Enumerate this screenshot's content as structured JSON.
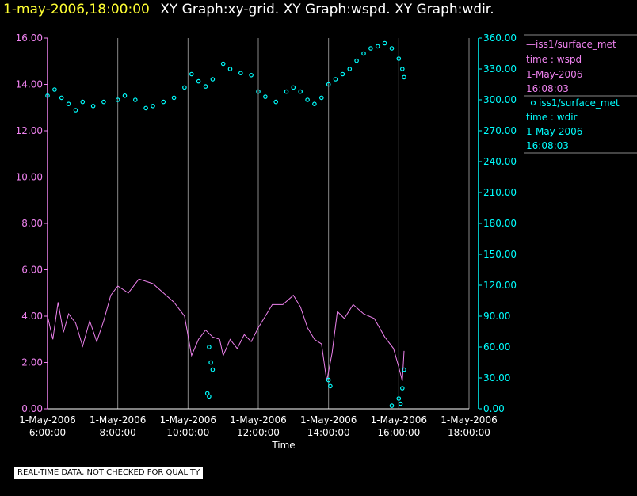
{
  "header": {
    "date": "1-may-2006,18:00:00",
    "title": "XY Graph:xy-grid.  XY Graph:wspd.  XY Graph:wdir."
  },
  "colors": {
    "background": "#000000",
    "grid": "#888888",
    "wspd": "#ee82ee",
    "wdir": "#00ffff",
    "header_date": "#ffff33"
  },
  "chart_data": {
    "type": "line",
    "xlabel": "Time",
    "x_ticks": [
      {
        "date": "1-May-2006",
        "time": "6:00:00",
        "hour": 6
      },
      {
        "date": "1-May-2006",
        "time": "8:00:00",
        "hour": 8
      },
      {
        "date": "1-May-2006",
        "time": "10:00:00",
        "hour": 10
      },
      {
        "date": "1-May-2006",
        "time": "12:00:00",
        "hour": 12
      },
      {
        "date": "1-May-2006",
        "time": "14:00:00",
        "hour": 14
      },
      {
        "date": "1-May-2006",
        "time": "16:00:00",
        "hour": 16
      },
      {
        "date": "1-May-2006",
        "time": "18:00:00",
        "hour": 18
      }
    ],
    "xlim_hours": [
      6,
      18
    ],
    "y_left": {
      "ylim": [
        0,
        16
      ],
      "ticks": [
        "0.00",
        "2.00",
        "4.00",
        "6.00",
        "8.00",
        "10.00",
        "12.00",
        "14.00",
        "16.00"
      ],
      "color": "#ee82ee"
    },
    "y_right": {
      "ylim": [
        0,
        360
      ],
      "ticks": [
        "0.00",
        "30.00",
        "60.00",
        "90.00",
        "120.00",
        "150.00",
        "180.00",
        "210.00",
        "240.00",
        "270.00",
        "300.00",
        "330.00",
        "360.00"
      ],
      "color": "#00ffff"
    },
    "grid": "vertical",
    "legend": {
      "placement": "right",
      "entries": [
        {
          "symbol": "—",
          "name": "iss1/surface_met",
          "subtitle": "time : wspd",
          "date": "1-May-2006",
          "time": "16:08:03"
        },
        {
          "symbol": "o",
          "name": "iss1/surface_met",
          "subtitle": "time : wdir",
          "date": "1-May-2006",
          "time": "16:08:03"
        }
      ]
    },
    "series": [
      {
        "key": "wspd",
        "axis": "left",
        "style": "line",
        "points": [
          [
            6.0,
            4.0
          ],
          [
            6.15,
            3.0
          ],
          [
            6.3,
            4.6
          ],
          [
            6.45,
            3.3
          ],
          [
            6.6,
            4.1
          ],
          [
            6.8,
            3.7
          ],
          [
            7.0,
            2.7
          ],
          [
            7.2,
            3.8
          ],
          [
            7.4,
            2.9
          ],
          [
            7.6,
            3.8
          ],
          [
            7.8,
            4.9
          ],
          [
            8.0,
            5.3
          ],
          [
            8.3,
            5.0
          ],
          [
            8.6,
            5.6
          ],
          [
            9.0,
            5.4
          ],
          [
            9.3,
            5.0
          ],
          [
            9.6,
            4.6
          ],
          [
            9.9,
            4.0
          ],
          [
            10.1,
            2.3
          ],
          [
            10.3,
            3.0
          ],
          [
            10.5,
            3.4
          ],
          [
            10.7,
            3.1
          ],
          [
            10.9,
            3.0
          ],
          [
            11.0,
            2.3
          ],
          [
            11.2,
            3.0
          ],
          [
            11.4,
            2.6
          ],
          [
            11.6,
            3.2
          ],
          [
            11.8,
            2.9
          ],
          [
            12.0,
            3.5
          ],
          [
            12.2,
            4.0
          ],
          [
            12.4,
            4.5
          ],
          [
            12.7,
            4.5
          ],
          [
            13.0,
            4.9
          ],
          [
            13.2,
            4.4
          ],
          [
            13.4,
            3.5
          ],
          [
            13.6,
            3.0
          ],
          [
            13.8,
            2.8
          ],
          [
            13.95,
            1.2
          ],
          [
            14.1,
            2.4
          ],
          [
            14.25,
            4.2
          ],
          [
            14.45,
            3.9
          ],
          [
            14.7,
            4.5
          ],
          [
            15.0,
            4.1
          ],
          [
            15.3,
            3.9
          ],
          [
            15.6,
            3.1
          ],
          [
            15.85,
            2.6
          ],
          [
            16.0,
            1.8
          ],
          [
            16.1,
            1.2
          ],
          [
            16.15,
            2.5
          ]
        ]
      },
      {
        "key": "wdir",
        "axis": "right",
        "style": "scatter",
        "points": [
          [
            6.0,
            304
          ],
          [
            6.2,
            310
          ],
          [
            6.4,
            302
          ],
          [
            6.6,
            296
          ],
          [
            6.8,
            290
          ],
          [
            7.0,
            298
          ],
          [
            7.3,
            294
          ],
          [
            7.6,
            298
          ],
          [
            8.0,
            300
          ],
          [
            8.2,
            304
          ],
          [
            8.5,
            300
          ],
          [
            8.8,
            292
          ],
          [
            9.0,
            294
          ],
          [
            9.3,
            298
          ],
          [
            9.6,
            302
          ],
          [
            9.9,
            312
          ],
          [
            10.1,
            325
          ],
          [
            10.3,
            318
          ],
          [
            10.5,
            313
          ],
          [
            10.7,
            320
          ],
          [
            11.0,
            335
          ],
          [
            11.2,
            330
          ],
          [
            11.5,
            326
          ],
          [
            11.8,
            324
          ],
          [
            12.0,
            308
          ],
          [
            12.2,
            303
          ],
          [
            12.5,
            298
          ],
          [
            12.8,
            308
          ],
          [
            13.0,
            312
          ],
          [
            13.2,
            308
          ],
          [
            13.4,
            300
          ],
          [
            13.6,
            296
          ],
          [
            13.8,
            302
          ],
          [
            14.0,
            315
          ],
          [
            14.2,
            320
          ],
          [
            14.4,
            325
          ],
          [
            14.6,
            330
          ],
          [
            14.8,
            338
          ],
          [
            15.0,
            345
          ],
          [
            15.2,
            350
          ],
          [
            15.4,
            352
          ],
          [
            15.6,
            355
          ],
          [
            15.8,
            350
          ],
          [
            16.0,
            340
          ],
          [
            16.1,
            330
          ],
          [
            16.15,
            322
          ],
          [
            10.6,
            60
          ],
          [
            10.65,
            45
          ],
          [
            10.7,
            38
          ],
          [
            10.55,
            15
          ],
          [
            10.6,
            12
          ],
          [
            14.0,
            28
          ],
          [
            14.05,
            22
          ],
          [
            16.0,
            10
          ],
          [
            16.05,
            5
          ],
          [
            16.1,
            20
          ],
          [
            16.15,
            38
          ],
          [
            15.8,
            3
          ]
        ]
      }
    ]
  },
  "footer": {
    "quality_note": "REAL-TIME DATA, NOT CHECKED FOR QUALITY"
  }
}
